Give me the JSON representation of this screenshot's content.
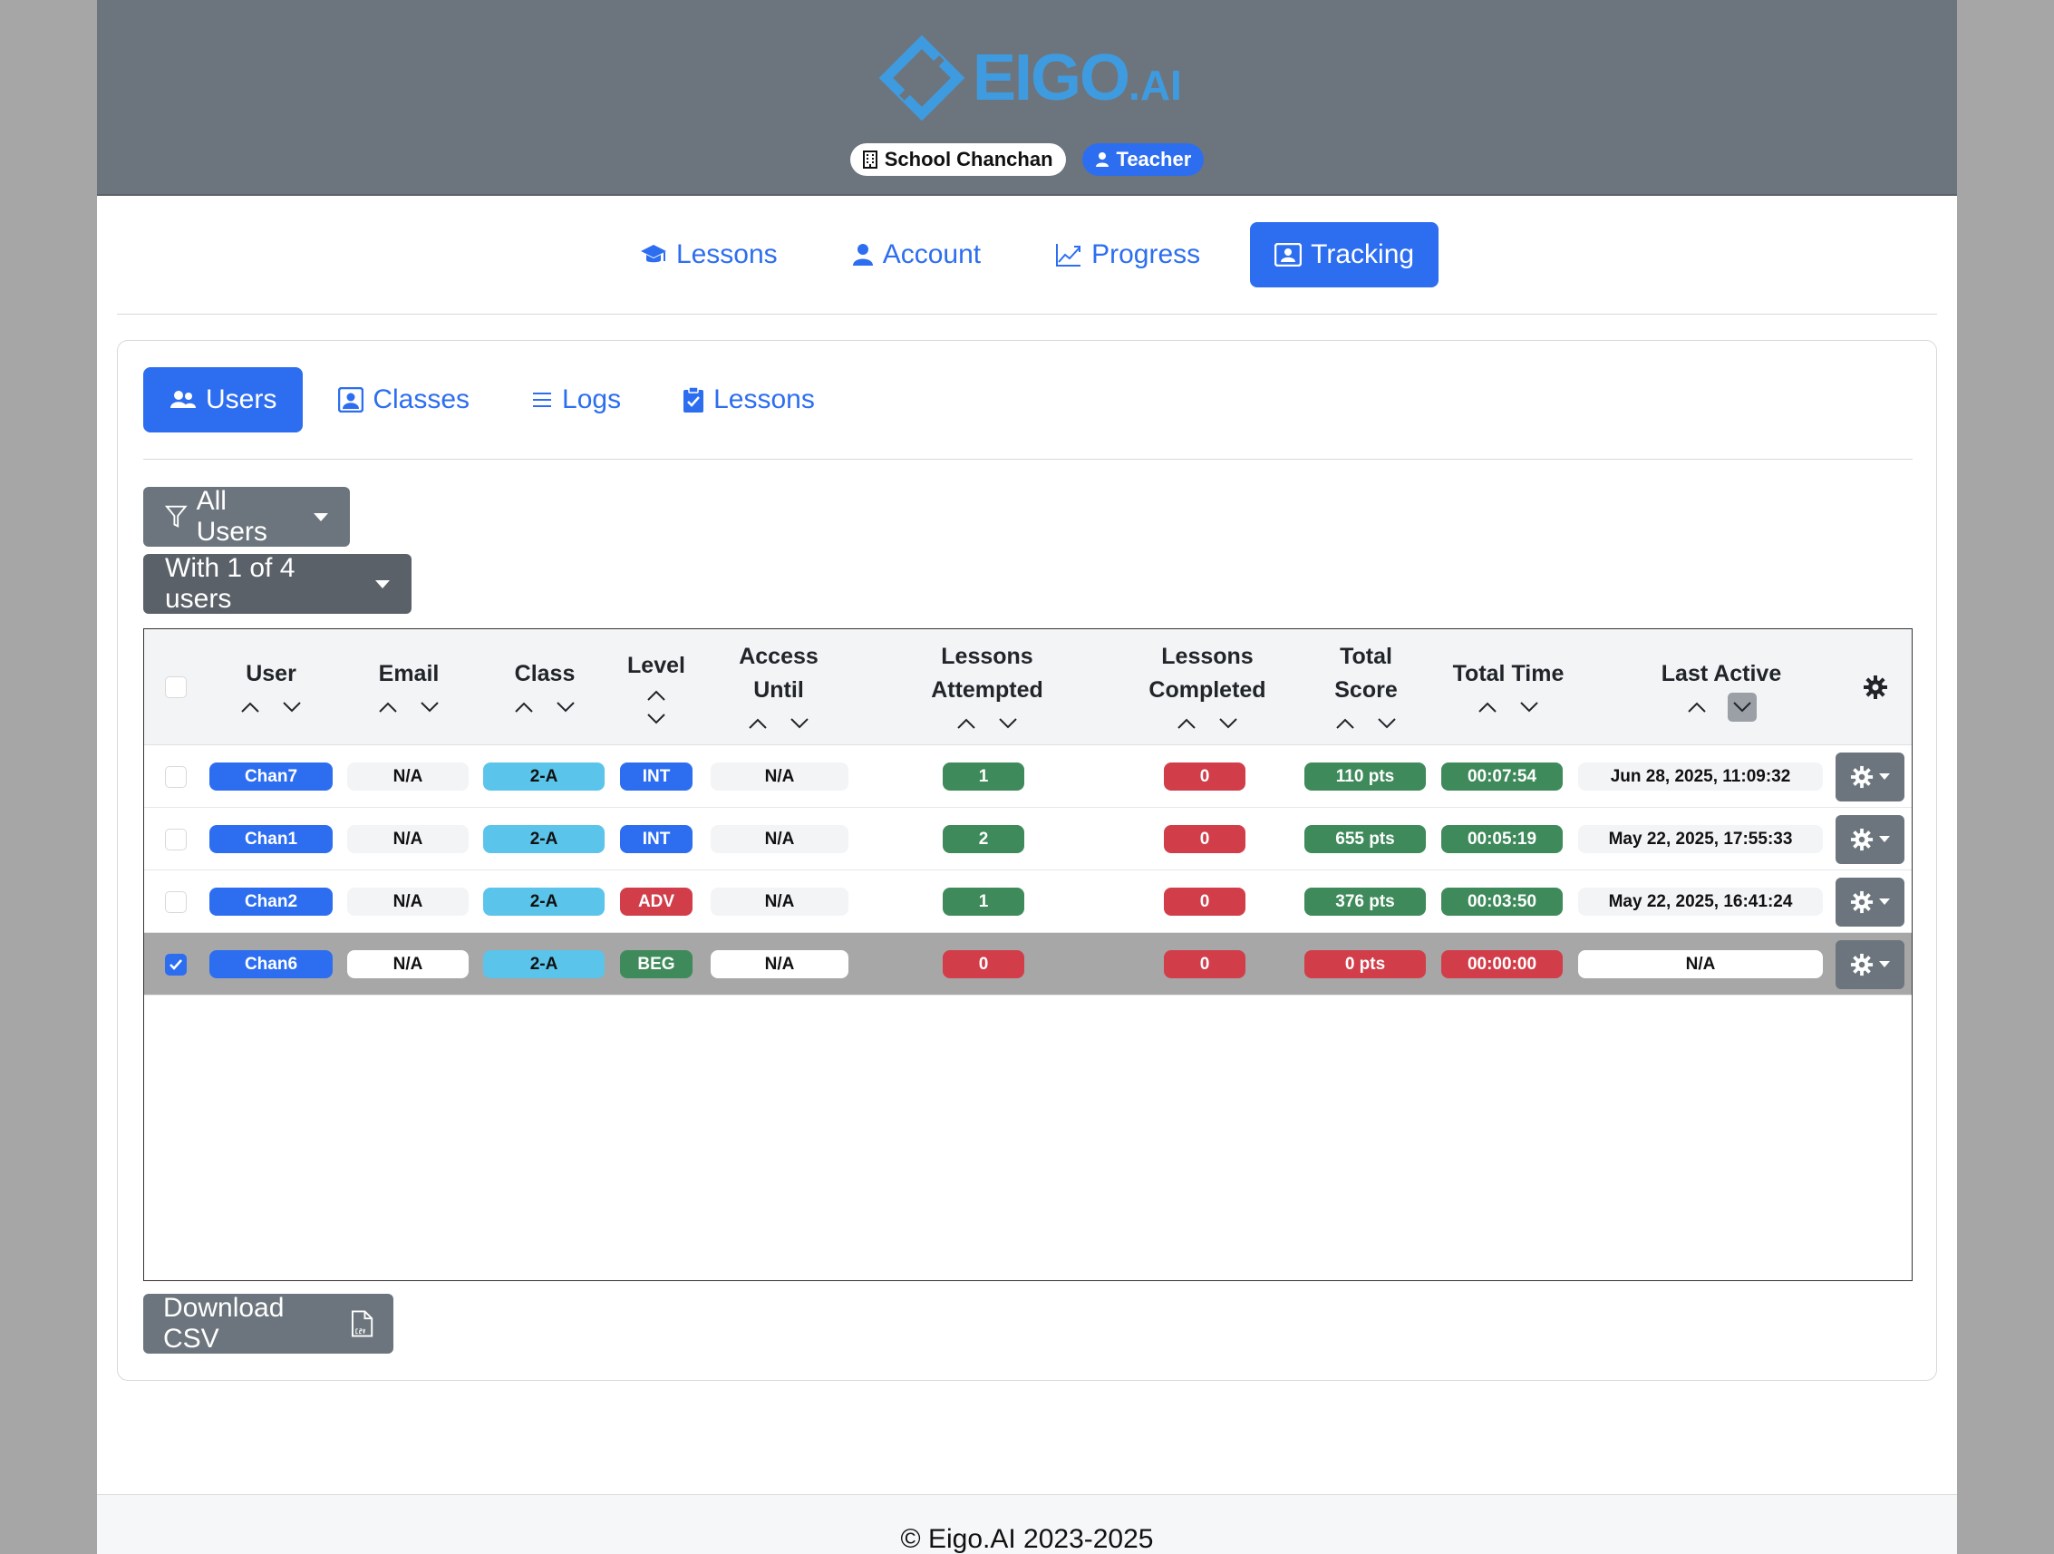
{
  "header": {
    "logo_text": "EIGO",
    "logo_suffix": ".AI",
    "school_badge": "School Chanchan",
    "role_badge": "Teacher"
  },
  "main_nav": {
    "items": [
      {
        "label": "Lessons",
        "icon": "graduation-cap-icon",
        "active": false
      },
      {
        "label": "Account",
        "icon": "person-icon",
        "active": false
      },
      {
        "label": "Progress",
        "icon": "graph-up-icon",
        "active": false
      },
      {
        "label": "Tracking",
        "icon": "person-badge-icon",
        "active": true
      }
    ]
  },
  "sub_nav": {
    "items": [
      {
        "label": "Users",
        "icon": "people-icon",
        "active": true
      },
      {
        "label": "Classes",
        "icon": "person-square-icon",
        "active": false
      },
      {
        "label": "Logs",
        "icon": "list-icon",
        "active": false
      },
      {
        "label": "Lessons",
        "icon": "clipboard-check-icon",
        "active": false
      }
    ]
  },
  "filters": {
    "all_users_label": "All Users",
    "selection_label": "With 1 of 4 users"
  },
  "table": {
    "headers": {
      "user": "User",
      "email": "Email",
      "class": "Class",
      "level": "Level",
      "access_line1": "Access",
      "access_line2": "Until",
      "attempted_line1": "Lessons",
      "attempted_line2": "Attempted",
      "completed_line1": "Lessons",
      "completed_line2": "Completed",
      "score_line1": "Total",
      "score_line2": "Score",
      "time": "Total Time",
      "last_active": "Last Active"
    },
    "rows": [
      {
        "user": "Chan7",
        "email": "N/A",
        "class": "2-A",
        "level": "INT",
        "access": "N/A",
        "attempted": "1",
        "completed": "0",
        "score": "110 pts",
        "time": "00:07:54",
        "last_active": "Jun 28, 2025, 11:09:32",
        "checked": false
      },
      {
        "user": "Chan1",
        "email": "N/A",
        "class": "2-A",
        "level": "INT",
        "access": "N/A",
        "attempted": "2",
        "completed": "0",
        "score": "655 pts",
        "time": "00:05:19",
        "last_active": "May 22, 2025, 17:55:33",
        "checked": false
      },
      {
        "user": "Chan2",
        "email": "N/A",
        "class": "2-A",
        "level": "ADV",
        "access": "N/A",
        "attempted": "1",
        "completed": "0",
        "score": "376 pts",
        "time": "00:03:50",
        "last_active": "May 22, 2025, 16:41:24",
        "checked": false
      },
      {
        "user": "Chan6",
        "email": "N/A",
        "class": "2-A",
        "level": "BEG",
        "access": "N/A",
        "attempted": "0",
        "completed": "0",
        "score": "0 pts",
        "time": "00:00:00",
        "last_active": "N/A",
        "checked": true
      }
    ]
  },
  "download_label": "Download CSV",
  "footer": "© Eigo.AI 2023-2025",
  "colors": {
    "primary": "#2d6ef0",
    "header_bg": "#6c757d",
    "success": "#3f8a5b",
    "danger": "#d13e4a",
    "info": "#5bc4ea"
  }
}
